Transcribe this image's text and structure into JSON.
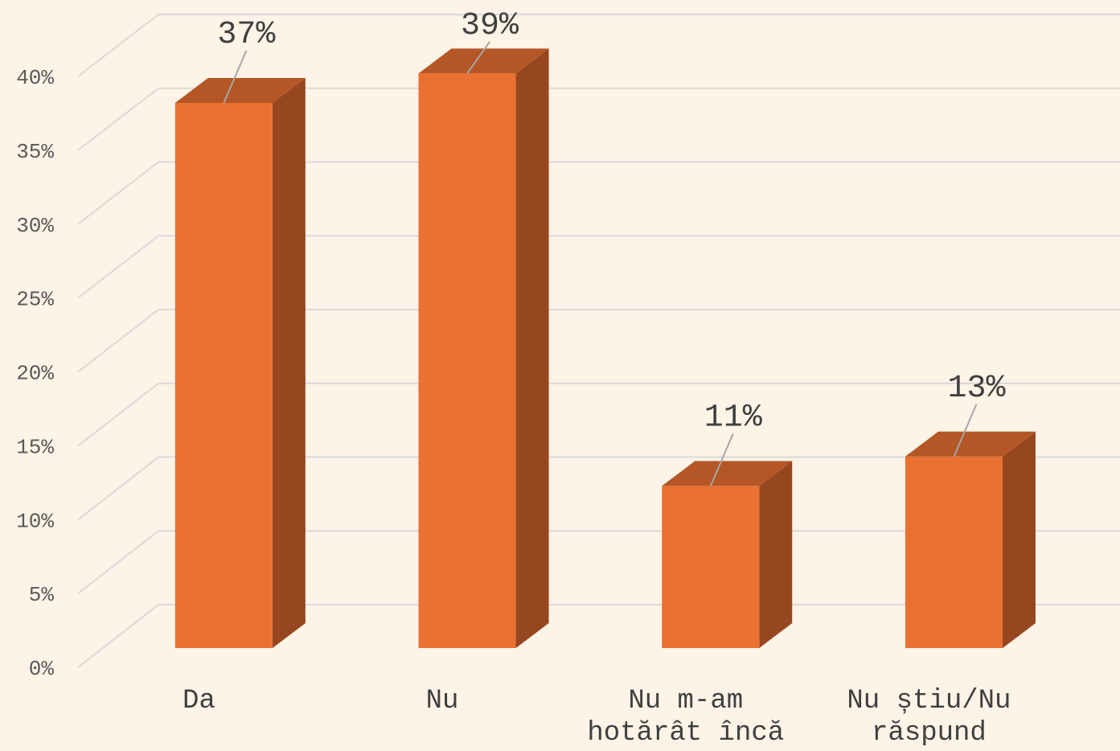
{
  "chart_data": {
    "type": "bar",
    "categories": [
      "Da",
      "Nu",
      "Nu m-am hotărât încă",
      "Nu știu/Nu răspund"
    ],
    "values": [
      37,
      39,
      11,
      13
    ],
    "value_labels": [
      "37%",
      "39%",
      "11%",
      "13%"
    ],
    "color": "#e97132",
    "ylim": [
      0,
      40
    ],
    "yticks": [
      {
        "value": 0,
        "label": "0%"
      },
      {
        "value": 5,
        "label": "5%"
      },
      {
        "value": 10,
        "label": "10%"
      },
      {
        "value": 15,
        "label": "15%"
      },
      {
        "value": 20,
        "label": "20%"
      },
      {
        "value": 25,
        "label": "25%"
      },
      {
        "value": 30,
        "label": "30%"
      },
      {
        "value": 35,
        "label": "35%"
      },
      {
        "value": 40,
        "label": "40%"
      }
    ],
    "grid": true
  }
}
